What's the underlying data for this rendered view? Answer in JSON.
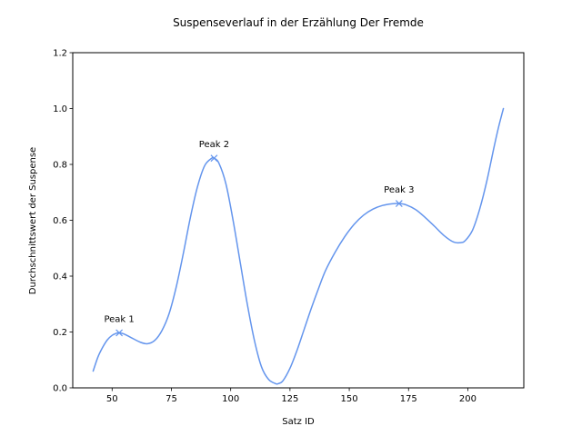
{
  "chart_data": {
    "type": "line",
    "title": "Suspenseverlauf in der Erzählung Der Fremde",
    "xlabel": "Satz ID",
    "ylabel": "Durchschnittswert der Suspense",
    "xlim": [
      33.4,
      223.6
    ],
    "ylim": [
      0,
      1.2
    ],
    "x_ticks": [
      50,
      75,
      100,
      125,
      150,
      175,
      200
    ],
    "y_ticks": [
      0.0,
      0.2,
      0.4,
      0.6,
      0.8,
      1.0,
      1.2
    ],
    "grid": false,
    "line_color": "#6495ed",
    "series": [
      {
        "x": [
          42,
          44,
          46,
          48,
          50,
          52,
          53,
          55,
          58,
          62,
          65,
          68,
          71,
          74,
          77,
          80,
          83,
          86,
          89,
          92,
          93,
          95,
          98,
          101,
          104,
          107,
          110,
          113,
          116,
          119,
          120,
          122,
          125,
          128,
          131,
          134,
          137,
          140,
          144,
          148,
          152,
          156,
          160,
          164,
          168,
          171,
          174,
          178,
          182,
          186,
          190,
          194,
          197,
          199,
          202,
          205,
          208,
          211,
          213,
          215
        ],
        "y": [
          0.06,
          0.11,
          0.145,
          0.172,
          0.188,
          0.196,
          0.197,
          0.193,
          0.18,
          0.163,
          0.158,
          0.17,
          0.205,
          0.265,
          0.36,
          0.48,
          0.61,
          0.72,
          0.795,
          0.822,
          0.822,
          0.805,
          0.73,
          0.6,
          0.45,
          0.3,
          0.17,
          0.075,
          0.03,
          0.015,
          0.015,
          0.025,
          0.07,
          0.135,
          0.21,
          0.285,
          0.355,
          0.42,
          0.485,
          0.54,
          0.585,
          0.618,
          0.64,
          0.653,
          0.659,
          0.66,
          0.655,
          0.638,
          0.61,
          0.578,
          0.545,
          0.522,
          0.52,
          0.528,
          0.565,
          0.64,
          0.74,
          0.86,
          0.935,
          1.0
        ]
      }
    ],
    "peaks": [
      {
        "label": "Peak 1",
        "x": 53,
        "y": 0.197
      },
      {
        "label": "Peak 2",
        "x": 93,
        "y": 0.822
      },
      {
        "label": "Peak 3",
        "x": 171,
        "y": 0.66
      }
    ]
  }
}
